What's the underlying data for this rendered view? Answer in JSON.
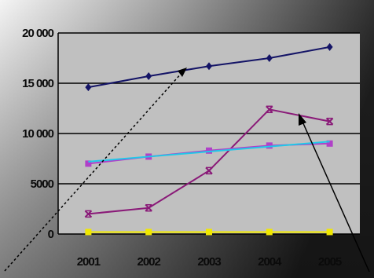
{
  "chart_data": {
    "type": "line",
    "title": "",
    "xlabel": "",
    "ylabel": "",
    "categories": [
      "2001",
      "2002",
      "2003",
      "2004",
      "2005"
    ],
    "ylim": [
      0,
      20000
    ],
    "yticks": [
      0,
      5000,
      10000,
      15000,
      20000
    ],
    "ytick_labels": [
      "0",
      "5000",
      "10 000",
      "15 000",
      "20 000"
    ],
    "grid": "horizontal",
    "legend": "none",
    "series": [
      {
        "color": "#141466",
        "marker": "diamond",
        "values": [
          14600,
          15700,
          16700,
          17500,
          18600
        ]
      },
      {
        "color": "#8a1a78",
        "marker": "cross",
        "values": [
          2000,
          2600,
          6300,
          12400,
          11200
        ]
      },
      {
        "color": "#b040c8",
        "marker": "square",
        "values": [
          7000,
          7700,
          8300,
          8800,
          9000
        ]
      },
      {
        "color": "#20c8e8",
        "marker": "none",
        "values": [
          7200,
          7700,
          8200,
          8700,
          9200
        ]
      },
      {
        "color": "#f0e800",
        "marker": "square",
        "values": [
          200,
          200,
          200,
          200,
          200
        ]
      }
    ],
    "colors": {
      "plot_area": "#c0c0c0",
      "gridline": "#000000",
      "annotation_arrow": "#000000"
    }
  }
}
